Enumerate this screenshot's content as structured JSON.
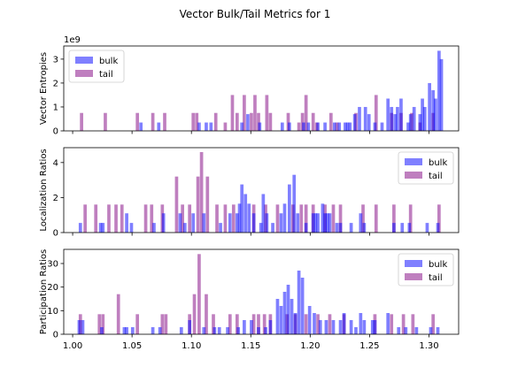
{
  "title": "Vector Bulk/Tail Metrics for 1",
  "colors": {
    "bulk": "#0000ff",
    "tail": "#800080",
    "bulk_alpha": 0.5,
    "tail_alpha": 0.5
  },
  "chart_data": [
    {
      "type": "bar",
      "name": "entropies",
      "ylabel": "Vector Entropies",
      "offset_text": "1e9",
      "xlim": [
        0.9925,
        1.325
      ],
      "ylim": [
        0,
        3.55
      ],
      "yticks": [
        0,
        1,
        2,
        3
      ],
      "xticks": [
        1.0,
        1.05,
        1.1,
        1.15,
        1.2,
        1.25,
        1.3
      ],
      "show_xticklabels": false,
      "legend": "top-left",
      "bar_width": 0.00275,
      "series": [
        {
          "name": "bulk",
          "x": [
            1.0575,
            1.0725,
            1.1065,
            1.1125,
            1.1165,
            1.1425,
            1.1475,
            1.1575,
            1.1765,
            1.1825,
            1.1945,
            1.1985,
            1.2065,
            1.2125,
            1.2205,
            1.2245,
            1.2295,
            1.2315,
            1.2335,
            1.2375,
            1.2415,
            1.2465,
            1.2495,
            1.2545,
            1.2605,
            1.2655,
            1.2685,
            1.2715,
            1.2735,
            1.2765,
            1.2825,
            1.2845,
            1.2875,
            1.2925,
            1.2945,
            1.2965,
            1.3005,
            1.3035,
            1.3055,
            1.3085,
            1.3105
          ],
          "values": [
            0.35,
            0.35,
            0.35,
            0.35,
            0.35,
            0.35,
            0.7,
            0.35,
            0.35,
            0.35,
            0.35,
            0.35,
            0.35,
            0.35,
            0.35,
            0.35,
            0.35,
            0.35,
            0.35,
            0.7,
            1.0,
            1.0,
            0.7,
            0.35,
            0.35,
            1.35,
            1.0,
            0.7,
            1.0,
            1.35,
            0.35,
            0.7,
            1.0,
            0.7,
            1.35,
            1.0,
            2.0,
            1.7,
            1.35,
            3.35,
            3.0
          ]
        },
        {
          "name": "tail",
          "x": [
            1.0075,
            1.0275,
            1.0545,
            1.0675,
            1.0775,
            1.1015,
            1.1045,
            1.1205,
            1.1285,
            1.1345,
            1.1385,
            1.1445,
            1.1505,
            1.1535,
            1.1565,
            1.1635,
            1.1665,
            1.1815,
            1.1905,
            1.1935,
            1.1965,
            1.2025,
            1.2055,
            1.2175,
            1.2225,
            1.2385,
            1.2555,
            1.2685,
            1.2765,
            1.2855,
            1.2925,
            1.3035
          ],
          "values": [
            0.75,
            0.75,
            0.75,
            0.75,
            0.75,
            0.75,
            0.75,
            0.75,
            0.35,
            1.5,
            0.75,
            1.5,
            0.75,
            1.5,
            0.75,
            1.5,
            0.75,
            0.75,
            0.35,
            0.75,
            1.5,
            0.75,
            0.35,
            0.75,
            0.35,
            0.75,
            1.5,
            0.75,
            0.75,
            0.75,
            0.35,
            0.75
          ]
        }
      ]
    },
    {
      "type": "bar",
      "name": "localization",
      "ylabel": "Localization Ratios",
      "xlim": [
        0.9925,
        1.325
      ],
      "ylim": [
        0,
        4.85
      ],
      "yticks": [
        0,
        2,
        4
      ],
      "xticks": [
        1.0,
        1.05,
        1.1,
        1.15,
        1.2,
        1.25,
        1.3
      ],
      "show_xticklabels": false,
      "legend": "top-right",
      "bar_width": 0.00275,
      "series": [
        {
          "name": "bulk",
          "x": [
            1.0065,
            1.0235,
            1.0255,
            1.0455,
            1.0495,
            1.0685,
            1.0765,
            1.0905,
            1.0945,
            1.1015,
            1.1105,
            1.1245,
            1.1325,
            1.1385,
            1.1405,
            1.1425,
            1.1455,
            1.1485,
            1.1525,
            1.1585,
            1.1605,
            1.1635,
            1.1685,
            1.1755,
            1.1785,
            1.1825,
            1.1865,
            1.1895,
            1.1965,
            1.2025,
            1.2045,
            1.2065,
            1.2105,
            1.2125,
            1.2145,
            1.2165,
            1.2225,
            1.2255,
            1.2345,
            1.2425,
            1.2455,
            1.2705,
            1.2775,
            1.2835,
            1.2985,
            1.3075
          ],
          "values": [
            0.55,
            0.55,
            0.55,
            1.1,
            0.55,
            0.55,
            1.1,
            1.1,
            0.55,
            1.1,
            1.1,
            0.55,
            1.1,
            1.1,
            1.65,
            2.75,
            2.2,
            1.65,
            1.1,
            0.55,
            2.2,
            1.1,
            0.55,
            1.1,
            1.65,
            2.75,
            3.3,
            1.1,
            0.55,
            1.1,
            1.1,
            1.1,
            1.65,
            1.1,
            1.1,
            1.1,
            0.55,
            0.55,
            0.55,
            1.1,
            0.55,
            0.55,
            0.55,
            0.55,
            0.55,
            0.55
          ]
        },
        {
          "name": "tail",
          "x": [
            1.0105,
            1.0195,
            1.0305,
            1.0365,
            1.0415,
            1.0615,
            1.0665,
            1.0755,
            1.0875,
            1.0925,
            1.0985,
            1.1055,
            1.1085,
            1.1135,
            1.1215,
            1.1285,
            1.1355,
            1.1525,
            1.1625,
            1.1725,
            1.1855,
            1.1925,
            1.1965,
            1.2025,
            1.2125,
            1.2195,
            1.2255,
            1.2445,
            1.2555,
            1.2705,
            1.2845,
            1.3085
          ],
          "values": [
            1.6,
            1.6,
            1.6,
            1.6,
            1.6,
            1.6,
            1.6,
            1.6,
            3.2,
            1.6,
            1.6,
            3.2,
            4.6,
            3.2,
            1.6,
            1.6,
            1.6,
            1.6,
            1.6,
            1.6,
            1.6,
            1.6,
            1.6,
            1.6,
            1.6,
            1.6,
            1.6,
            1.6,
            1.6,
            1.6,
            1.6,
            1.6
          ]
        }
      ]
    },
    {
      "type": "bar",
      "name": "participation",
      "ylabel": "Participation Ratios",
      "xlim": [
        0.9925,
        1.325
      ],
      "ylim": [
        0,
        36
      ],
      "yticks": [
        0,
        10,
        20,
        30
      ],
      "xticks": [
        1.0,
        1.05,
        1.1,
        1.15,
        1.2,
        1.25,
        1.3
      ],
      "xticklabels": [
        "1.00",
        "1.05",
        "1.10",
        "1.15",
        "1.20",
        "1.25",
        "1.30"
      ],
      "show_xticklabels": true,
      "legend": "top-right",
      "bar_width": 0.00275,
      "series": [
        {
          "name": "bulk",
          "x": [
            1.0055,
            1.0085,
            1.0245,
            1.0435,
            1.0455,
            1.0505,
            1.0675,
            1.0735,
            1.0915,
            1.0985,
            1.1105,
            1.1195,
            1.1235,
            1.1305,
            1.1395,
            1.1445,
            1.1505,
            1.1565,
            1.1625,
            1.1665,
            1.1725,
            1.1755,
            1.1785,
            1.1815,
            1.1845,
            1.1875,
            1.1905,
            1.1935,
            1.1995,
            1.2035,
            1.2085,
            1.2135,
            1.2195,
            1.2255,
            1.2285,
            1.2345,
            1.2385,
            1.2425,
            1.2455,
            1.2525,
            1.2545,
            1.2655,
            1.2745,
            1.2805,
            1.2895,
            1.3015,
            1.3075
          ],
          "values": [
            6,
            6,
            3,
            3,
            3,
            3,
            3,
            3,
            3,
            6,
            3,
            3,
            3,
            3,
            3,
            6,
            6,
            3,
            3,
            6,
            15,
            12,
            18,
            21,
            15,
            9,
            27,
            24,
            12,
            9,
            6,
            6,
            6,
            6,
            9,
            6,
            3,
            9,
            6,
            6,
            6,
            9,
            3,
            3,
            3,
            3,
            3
          ]
        },
        {
          "name": "tail",
          "x": [
            1.0065,
            1.0225,
            1.0255,
            1.0385,
            1.0545,
            1.0755,
            1.0785,
            1.0985,
            1.1025,
            1.1065,
            1.1125,
            1.1185,
            1.1325,
            1.1385,
            1.1525,
            1.1565,
            1.1615,
            1.1665,
            1.1805,
            1.1875,
            1.1965,
            1.2065,
            1.2165,
            1.2285,
            1.2545,
            1.2685,
            1.2785,
            1.2865,
            1.3035
          ],
          "values": [
            8.5,
            8.5,
            8.5,
            17,
            8.5,
            8.5,
            8.5,
            8.5,
            17,
            34,
            17,
            8.5,
            8.5,
            8.5,
            8.5,
            8.5,
            8.5,
            8.5,
            8.5,
            8.5,
            8.5,
            8.5,
            8.5,
            8.5,
            8.5,
            8.5,
            8.5,
            8.5,
            8.5
          ]
        }
      ]
    }
  ]
}
